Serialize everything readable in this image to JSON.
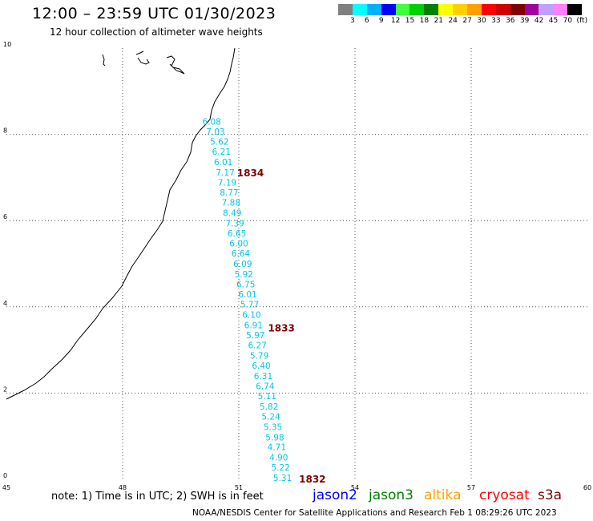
{
  "header": {
    "title": "12:00 – 23:59 UTC 01/30/2023",
    "subtitle": "12 hour collection of altimeter wave heights"
  },
  "colorbar": {
    "colors": [
      "#808080",
      "#00ffff",
      "#00b0ff",
      "#0000ff",
      "#40ff40",
      "#00d000",
      "#008000",
      "#ffff00",
      "#ffd000",
      "#ffa000",
      "#ff0000",
      "#d00000",
      "#800000",
      "#a000a0",
      "#c0a0ff",
      "#ff80ff",
      "#000000"
    ],
    "labels": [
      "3",
      "6",
      "9",
      "12",
      "15",
      "18",
      "21",
      "24",
      "27",
      "30",
      "33",
      "36",
      "39",
      "42",
      "45",
      "70",
      "(ft)"
    ]
  },
  "map": {
    "x_ticks": [
      "45",
      "48",
      "51",
      "54",
      "57",
      "60"
    ],
    "y_ticks": [
      "0",
      "2",
      "4",
      "6",
      "8",
      "10"
    ],
    "x_range": [
      45,
      60
    ],
    "y_range": [
      0,
      10
    ],
    "grid": true,
    "wave_color": "#00c8e6",
    "time_label_color": "#800000",
    "time_labels": [
      {
        "text": "1834",
        "x": 51.3,
        "y": 7.1
      },
      {
        "text": "1833",
        "x": 52.1,
        "y": 3.5
      },
      {
        "text": "1832",
        "x": 52.9,
        "y": 0.0
      }
    ],
    "wave_heights": [
      {
        "v": "6.08",
        "x": 50.3,
        "y": 8.3
      },
      {
        "v": "7.03",
        "x": 50.4,
        "y": 8.07
      },
      {
        "v": "5.62",
        "x": 50.5,
        "y": 7.83
      },
      {
        "v": "6.21",
        "x": 50.55,
        "y": 7.6
      },
      {
        "v": "6.01",
        "x": 50.6,
        "y": 7.36
      },
      {
        "v": "7.17",
        "x": 50.65,
        "y": 7.12
      },
      {
        "v": "7.19",
        "x": 50.7,
        "y": 6.89
      },
      {
        "v": "8.77",
        "x": 50.75,
        "y": 6.65
      },
      {
        "v": "7.88",
        "x": 50.8,
        "y": 6.42
      },
      {
        "v": "8.49",
        "x": 50.83,
        "y": 6.18
      },
      {
        "v": "7.39",
        "x": 50.9,
        "y": 5.94
      },
      {
        "v": "6.65",
        "x": 50.95,
        "y": 5.71
      },
      {
        "v": "6.00",
        "x": 51.0,
        "y": 5.47
      },
      {
        "v": "6.64",
        "x": 51.05,
        "y": 5.24
      },
      {
        "v": "6.09",
        "x": 51.1,
        "y": 5.0
      },
      {
        "v": "5.92",
        "x": 51.13,
        "y": 4.76
      },
      {
        "v": "6.75",
        "x": 51.18,
        "y": 4.53
      },
      {
        "v": "6.01",
        "x": 51.23,
        "y": 4.29
      },
      {
        "v": "5.77",
        "x": 51.28,
        "y": 4.06
      },
      {
        "v": "6.10",
        "x": 51.33,
        "y": 3.82
      },
      {
        "v": "6.91",
        "x": 51.38,
        "y": 3.58
      },
      {
        "v": "5.97",
        "x": 51.43,
        "y": 3.35
      },
      {
        "v": "6.27",
        "x": 51.48,
        "y": 3.11
      },
      {
        "v": "5.79",
        "x": 51.53,
        "y": 2.87
      },
      {
        "v": "6.40",
        "x": 51.58,
        "y": 2.64
      },
      {
        "v": "6.31",
        "x": 51.63,
        "y": 2.4
      },
      {
        "v": "6.74",
        "x": 51.68,
        "y": 2.17
      },
      {
        "v": "5.11",
        "x": 51.73,
        "y": 1.93
      },
      {
        "v": "5.82",
        "x": 51.78,
        "y": 1.69
      },
      {
        "v": "5.24",
        "x": 51.83,
        "y": 1.46
      },
      {
        "v": "5.35",
        "x": 51.88,
        "y": 1.22
      },
      {
        "v": "5.98",
        "x": 51.93,
        "y": 0.98
      },
      {
        "v": "4.71",
        "x": 51.98,
        "y": 0.75
      },
      {
        "v": "4.90",
        "x": 52.03,
        "y": 0.51
      },
      {
        "v": "5.22",
        "x": 52.08,
        "y": 0.28
      },
      {
        "v": "5.31",
        "x": 52.13,
        "y": 0.04
      }
    ]
  },
  "note": "note:  1) Time is in UTC; 2) SWH is in feet",
  "satellites": [
    {
      "name": "jason2",
      "color": "#0000ff"
    },
    {
      "name": "jason3",
      "color": "#008000"
    },
    {
      "name": "altika",
      "color": "#ffa000"
    },
    {
      "name": "cryosat",
      "color": "#ff0000"
    },
    {
      "name": "s3a",
      "color": "#800000"
    }
  ],
  "footer": "NOAA/NESDIS Center for Satellite Applications and Research    Feb  1 08:29:26 UTC 2023"
}
